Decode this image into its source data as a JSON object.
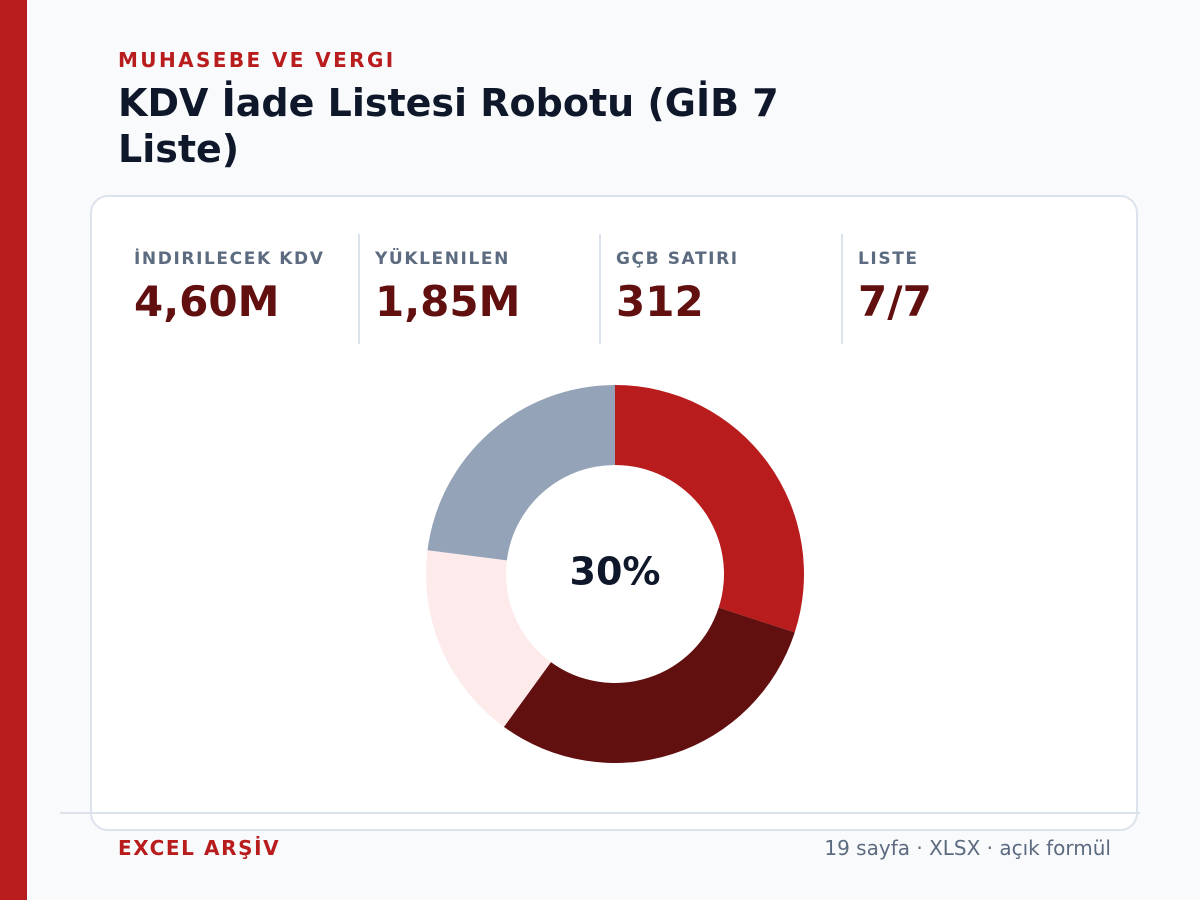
{
  "header": {
    "eyebrow": "MUHASEBE VE VERGI",
    "title": "KDV İade Listesi Robotu (GİB 7 Liste)"
  },
  "kpis": [
    {
      "label": "İNDIRILECEK KDV",
      "value": "4,60M"
    },
    {
      "label": "YÜKLENILEN",
      "value": "1,85M"
    },
    {
      "label": "GÇB SATIRI",
      "value": "312"
    },
    {
      "label": "LISTE",
      "value": "7/7"
    }
  ],
  "chart_data": {
    "type": "pie",
    "donut": true,
    "center_label": "30%",
    "values": [
      30,
      30,
      17,
      23
    ],
    "colors": [
      "#b91c1c",
      "#620f0f",
      "#fdeaea",
      "#94a3b8"
    ],
    "start_angle_deg": 0,
    "direction": "clockwise",
    "legend": "none"
  },
  "footer": {
    "left": "EXCEL ARŞİV",
    "right": "19 sayfa · XLSX · açık formül"
  },
  "colors": {
    "accent": "#b91c1c",
    "dark_accent": "#620f0f",
    "muted_text": "#5c6b80",
    "title_text": "#0f172a",
    "background": "#f8fafc",
    "card_border": "#dde3ec"
  }
}
